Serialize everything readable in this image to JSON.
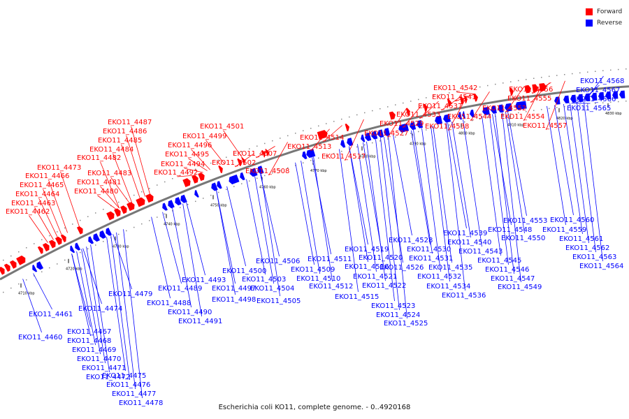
{
  "legend": {
    "items": [
      {
        "label": "Forward",
        "color": "#ff0000"
      },
      {
        "label": "Reverse",
        "color": "#0000ff"
      }
    ]
  },
  "caption": "Escherichia coli KO11, complete genome. - 0..4920168",
  "colors": {
    "forward": "#ff0000",
    "reverse": "#0000ff",
    "backbone": "#777777"
  },
  "ticks": [
    "4710 kbp",
    "4720 kbp",
    "4730 kbp",
    "4740 kbp",
    "4750 kbp",
    "4760 kbp",
    "4770 kbp",
    "4780 kbp",
    "4790 kbp",
    "4800 kbp",
    "4810 kbp",
    "4820 kbp",
    "4830 kbp"
  ],
  "forward_labels": [
    "EKO11_4462",
    "EKO11_4463",
    "EKO11_4464",
    "EKO11_4465",
    "EKO11_4466",
    "EKO11_4473",
    "EKO11_4480",
    "EKO11_4481",
    "EKO11_4482",
    "EKO11_4483",
    "EKO11_4484",
    "EKO11_4485",
    "EKO11_4486",
    "EKO11_4487",
    "EKO11_4492",
    "EKO11_4494",
    "EKO11_4495",
    "EKO11_4496",
    "EKO11_4499",
    "EKO11_4501",
    "EKO11_4502",
    "EKO11_4507",
    "EKO11_4508",
    "EKO11_4513",
    "EKO11_4514",
    "EKO11_4517",
    "EKO11_4527",
    "EKO11_4529",
    "EKO11_4533",
    "EKO11_4537",
    "EKO11_4538",
    "EKO11_4541",
    "EKO11_4542",
    "EKO11_4544",
    "EKO11_4552",
    "EKO11_4554",
    "EKO11_4555",
    "EKO11_4556",
    "EKO11_4557"
  ],
  "reverse_labels": [
    "EKO11_4460",
    "EKO11_4461",
    "EKO11_4467",
    "EKO11_4468",
    "EKO11_4469",
    "EKO11_4470",
    "EKO11_4471",
    "EKO11_4472",
    "EKO11_4474",
    "EKO11_4475",
    "EKO11_4476",
    "EKO11_4477",
    "EKO11_4478",
    "EKO11_4479",
    "EKO11_4488",
    "EKO11_4489",
    "EKO11_4490",
    "EKO11_4491",
    "EKO11_4493",
    "EKO11_4497",
    "EKO11_4498",
    "EKO11_4500",
    "EKO11_4503",
    "EKO11_4504",
    "EKO11_4505",
    "EKO11_4506",
    "EKO11_4509",
    "EKO11_4510",
    "EKO11_4511",
    "EKO11_4512",
    "EKO11_4515",
    "EKO11_4516",
    "EKO11_4519",
    "EKO11_4520",
    "EKO11_4521",
    "EKO11_4522",
    "EKO11_4523",
    "EKO11_4524",
    "EKO11_4525",
    "EKO11_4526",
    "EKO11_4528",
    "EKO11_4530",
    "EKO11_4531",
    "EKO11_4532",
    "EKO11_4534",
    "EKO11_4535",
    "EKO11_4536",
    "EKO11_4539",
    "EKO11_4540",
    "EKO11_4543",
    "EKO11_4545",
    "EKO11_4546",
    "EKO11_4547",
    "EKO11_4548",
    "EKO11_4549",
    "EKO11_4550",
    "EKO11_4553",
    "EKO11_4559",
    "EKO11_4560",
    "EKO11_4561",
    "EKO11_4562",
    "EKO11_4563",
    "EKO11_4564",
    "EKO11_4565",
    "EKO11_4566",
    "EKO11_4567",
    "EKO11_4568"
  ]
}
